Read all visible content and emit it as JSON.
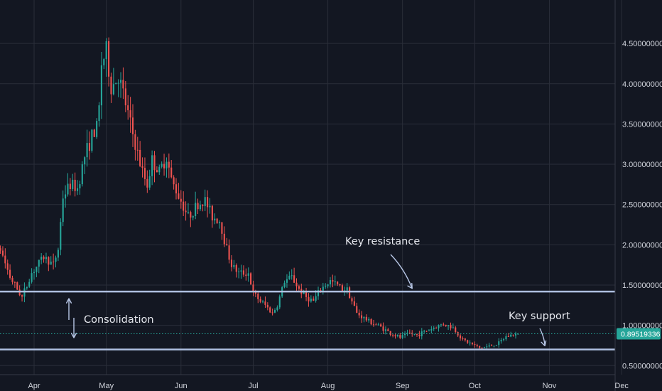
{
  "chart_data": {
    "type": "candlestick",
    "title": "",
    "xlabel": "",
    "ylabel": "",
    "ylim": [
      0.4,
      4.92
    ],
    "grid": true,
    "x_ticks": [
      "Apr",
      "May",
      "Jun",
      "Jul",
      "Aug",
      "Sep",
      "Oct",
      "Nov",
      "Dec"
    ],
    "y_ticks": [
      "4.50000000",
      "4.00000000",
      "3.50000000",
      "3.00000000",
      "2.50000000",
      "2.00000000",
      "1.50000000",
      "1.00000000",
      "0.50000000"
    ],
    "y_tick_values": [
      4.5,
      4.0,
      3.5,
      3.0,
      2.5,
      2.0,
      1.5,
      1.0,
      0.5
    ],
    "last_price": "0.89519336",
    "last_price_value": 0.8952,
    "horizontal_levels": [
      1.42,
      0.7
    ],
    "colors": {
      "background": "#131722",
      "grid": "#2a2e39",
      "up": "#26a69a",
      "down": "#ef5350",
      "level_line": "#aebfe0",
      "annotation": "#e6e8ee",
      "price_badge": "#26a69a"
    },
    "annotations": [
      {
        "text": "Key resistance",
        "arrow": "down-right",
        "points_to_date": "2021-09-05",
        "points_to_price": 1.45
      },
      {
        "text": "Key support",
        "arrow": "down-left",
        "points_to_date": "2021-10-31",
        "points_to_price": 0.72
      },
      {
        "text": "Consolidation",
        "arrow": "double-vertical",
        "spans_prices": [
          0.7,
          1.42
        ]
      }
    ],
    "price_path": [
      [
        "2021-03-04",
        1.8
      ],
      [
        "2021-03-08",
        2.1
      ],
      [
        "2021-03-13",
        1.75
      ],
      [
        "2021-03-18",
        1.95
      ],
      [
        "2021-03-22",
        1.6
      ],
      [
        "2021-03-27",
        1.35
      ],
      [
        "2021-03-31",
        1.65
      ],
      [
        "2021-04-05",
        1.85
      ],
      [
        "2021-04-09",
        1.75
      ],
      [
        "2021-04-11",
        1.95
      ],
      [
        "2021-04-13",
        2.6
      ],
      [
        "2021-04-16",
        2.75
      ],
      [
        "2021-04-19",
        2.7
      ],
      [
        "2021-04-22",
        3.1
      ],
      [
        "2021-04-25",
        3.35
      ],
      [
        "2021-04-27",
        3.45
      ],
      [
        "2021-04-28",
        3.7
      ],
      [
        "2021-04-29",
        4.25
      ],
      [
        "2021-05-01",
        4.4
      ],
      [
        "2021-05-03",
        3.95
      ],
      [
        "2021-05-06",
        4.1
      ],
      [
        "2021-05-09",
        3.75
      ],
      [
        "2021-05-11",
        3.5
      ],
      [
        "2021-05-13",
        3.25
      ],
      [
        "2021-05-16",
        2.9
      ],
      [
        "2021-05-18",
        2.75
      ],
      [
        "2021-05-20",
        3.05
      ],
      [
        "2021-05-23",
        2.9
      ],
      [
        "2021-05-26",
        3.1
      ],
      [
        "2021-05-28",
        2.8
      ],
      [
        "2021-06-01",
        2.55
      ],
      [
        "2021-06-04",
        2.35
      ],
      [
        "2021-06-08",
        2.5
      ],
      [
        "2021-06-11",
        2.55
      ],
      [
        "2021-06-14",
        2.35
      ],
      [
        "2021-06-17",
        2.3
      ],
      [
        "2021-06-20",
        1.95
      ],
      [
        "2021-06-22",
        1.75
      ],
      [
        "2021-06-25",
        1.65
      ],
      [
        "2021-06-29",
        1.65
      ],
      [
        "2021-07-01",
        1.4
      ],
      [
        "2021-07-04",
        1.3
      ],
      [
        "2021-07-06",
        1.25
      ],
      [
        "2021-07-09",
        1.15
      ],
      [
        "2021-07-11",
        1.25
      ],
      [
        "2021-07-14",
        1.55
      ],
      [
        "2021-07-17",
        1.6
      ],
      [
        "2021-07-20",
        1.45
      ],
      [
        "2021-07-23",
        1.35
      ],
      [
        "2021-07-26",
        1.3
      ],
      [
        "2021-07-29",
        1.45
      ],
      [
        "2021-08-02",
        1.55
      ],
      [
        "2021-08-05",
        1.5
      ],
      [
        "2021-08-07",
        1.45
      ],
      [
        "2021-08-09",
        1.45
      ],
      [
        "2021-08-13",
        1.15
      ],
      [
        "2021-08-18",
        1.05
      ],
      [
        "2021-08-23",
        0.98
      ],
      [
        "2021-08-27",
        0.9
      ],
      [
        "2021-08-31",
        0.85
      ],
      [
        "2021-09-04",
        0.9
      ],
      [
        "2021-09-07",
        0.88
      ],
      [
        "2021-09-10",
        0.92
      ],
      [
        "2021-09-14",
        0.97
      ],
      [
        "2021-09-18",
        1.02
      ],
      [
        "2021-09-22",
        0.97
      ],
      [
        "2021-09-26",
        0.82
      ],
      [
        "2021-09-29",
        0.78
      ],
      [
        "2021-10-03",
        0.72
      ],
      [
        "2021-10-07",
        0.74
      ],
      [
        "2021-10-11",
        0.78
      ],
      [
        "2021-10-14",
        0.86
      ],
      [
        "2021-10-18",
        0.895
      ]
    ]
  }
}
